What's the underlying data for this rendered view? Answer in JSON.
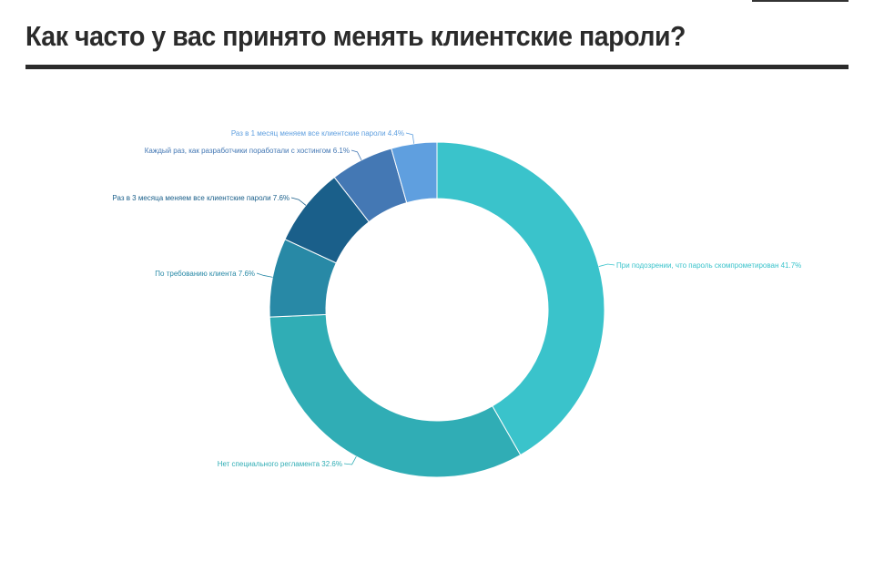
{
  "title": "Как часто у вас принято менять клиентские пароли?",
  "chart_data": {
    "type": "pie",
    "donut": true,
    "title": "Как часто у вас принято менять клиентские пароли?",
    "categories": [
      "При подозрении, что пароль скомпрометирован",
      "Нет специального регламента",
      "По требованию клиента",
      "Раз в 3 месяца меняем все клиентские пароли",
      "Каждый раз, как разработчики поработали с хостингом",
      "Раз в 1 месяц меняем все клиентские пароли"
    ],
    "values": [
      41.7,
      32.6,
      7.6,
      7.6,
      6.1,
      4.4
    ],
    "labels": [
      "При подозрении, что пароль скомпрометирован 41.7%",
      "Нет специального регламента 32.6%",
      "По требованию клиента 7.6%",
      "Раз в 3 месяца меняем все клиентские пароли 7.6%",
      "Каждый раз, как разработчики поработали с хостингом 6.1%",
      "Раз в 1 месяц меняем все клиентские пароли 4.4%"
    ],
    "colors": [
      "#3ac3cb",
      "#30adb5",
      "#2889a6",
      "#1a5f8a",
      "#4478b4",
      "#5f9fdf"
    ],
    "label_colors": [
      "#3ac3cb",
      "#30adb5",
      "#2889a6",
      "#1a5f8a",
      "#4478b4",
      "#5f9fdf"
    ]
  }
}
